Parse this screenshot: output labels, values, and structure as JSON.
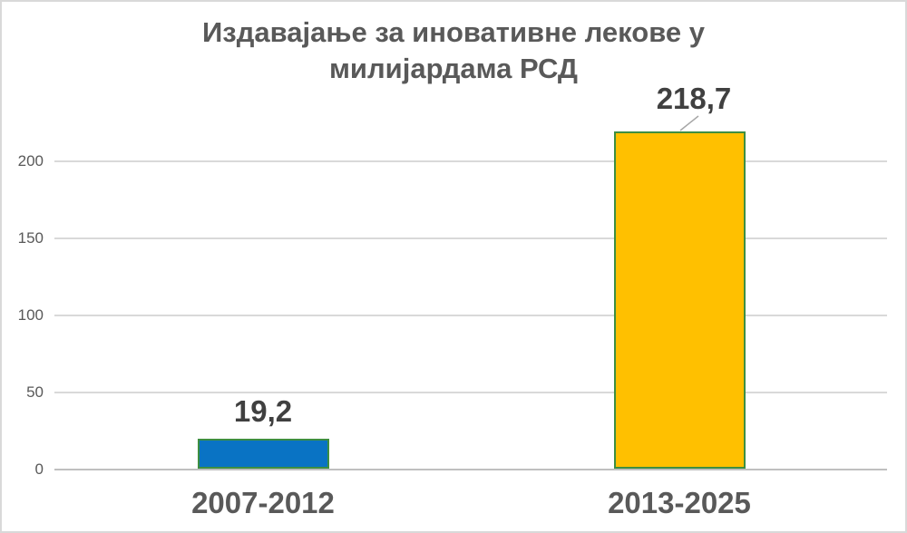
{
  "chart_data": {
    "type": "bar",
    "title": "Издавајање за иновативне лекове у милијардама РСД",
    "title_lines": [
      "Издавајање за иновативне лекове у",
      "милијардама РСД"
    ],
    "categories": [
      "2007-2012",
      "2013-2025"
    ],
    "values": [
      19.2,
      218.7
    ],
    "value_labels": [
      "19,2",
      "218,7"
    ],
    "xlabel": "",
    "ylabel": "",
    "y_ticks": [
      0,
      50,
      100,
      150,
      200
    ],
    "ylim": [
      0,
      235
    ],
    "grid": true,
    "legend": false,
    "bar_colors": [
      "#0973C4",
      "#FFC000"
    ],
    "bar_border_color": "#3E8E41",
    "label_leader": [
      false,
      true
    ],
    "colors": {
      "title": "#595959",
      "axis_labels": "#595959",
      "value_labels": "#404040",
      "gridline": "#D9D9D9",
      "axis_line": "#BFBFBF",
      "leader_line": "#A6A6A6",
      "frame_border": "#D9D9D9",
      "background": "#FFFFFF"
    }
  }
}
